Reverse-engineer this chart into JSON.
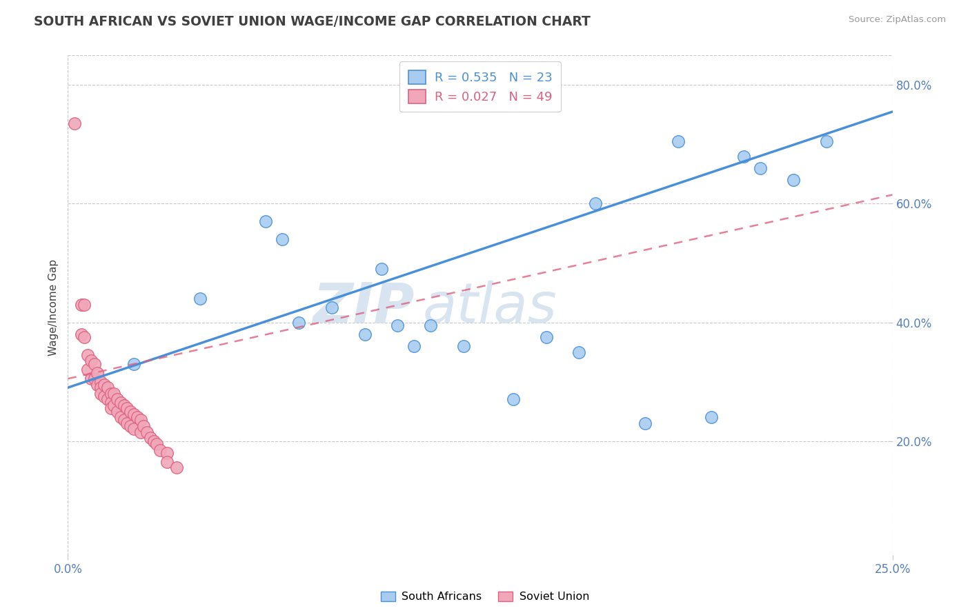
{
  "title": "SOUTH AFRICAN VS SOVIET UNION WAGE/INCOME GAP CORRELATION CHART",
  "source": "Source: ZipAtlas.com",
  "ylabel": "Wage/Income Gap",
  "xlim": [
    0.0,
    0.25
  ],
  "ylim": [
    0.0,
    0.85
  ],
  "yticks": [
    0.2,
    0.4,
    0.6,
    0.8
  ],
  "yticklabels": [
    "20.0%",
    "40.0%",
    "60.0%",
    "80.0%"
  ],
  "xticks": [
    0.0,
    0.25
  ],
  "xticklabels": [
    "0.0%",
    "25.0%"
  ],
  "south_african_R": 0.535,
  "south_african_N": 23,
  "soviet_union_R": 0.027,
  "soviet_union_N": 49,
  "sa_color": "#A8CCF0",
  "su_color": "#F0A8B8",
  "sa_line_color": "#4A90D9",
  "su_line_color": "#E06080",
  "watermark_top": "ZIP",
  "watermark_bottom": "atlas",
  "watermark_color": "#D8E4F0",
  "background_color": "#FFFFFF",
  "grid_color": "#C8C8C8",
  "title_color": "#404040",
  "axis_label_color": "#5580BB",
  "south_africans_x": [
    0.02,
    0.04,
    0.06,
    0.065,
    0.07,
    0.08,
    0.09,
    0.095,
    0.1,
    0.105,
    0.11,
    0.12,
    0.135,
    0.145,
    0.155,
    0.16,
    0.175,
    0.185,
    0.195,
    0.205,
    0.21,
    0.22,
    0.23
  ],
  "south_africans_y": [
    0.33,
    0.44,
    0.57,
    0.54,
    0.4,
    0.425,
    0.38,
    0.49,
    0.395,
    0.36,
    0.395,
    0.36,
    0.27,
    0.375,
    0.35,
    0.6,
    0.23,
    0.705,
    0.24,
    0.68,
    0.66,
    0.64,
    0.705
  ],
  "soviet_union_x": [
    0.004,
    0.004,
    0.005,
    0.005,
    0.006,
    0.006,
    0.007,
    0.007,
    0.008,
    0.008,
    0.009,
    0.009,
    0.01,
    0.01,
    0.01,
    0.011,
    0.011,
    0.012,
    0.012,
    0.013,
    0.013,
    0.013,
    0.014,
    0.014,
    0.015,
    0.015,
    0.016,
    0.016,
    0.017,
    0.017,
    0.018,
    0.018,
    0.019,
    0.019,
    0.02,
    0.02,
    0.021,
    0.022,
    0.022,
    0.023,
    0.024,
    0.025,
    0.026,
    0.027,
    0.028,
    0.03,
    0.03,
    0.033,
    0.002
  ],
  "soviet_union_y": [
    0.43,
    0.38,
    0.43,
    0.375,
    0.345,
    0.32,
    0.335,
    0.305,
    0.33,
    0.305,
    0.315,
    0.295,
    0.3,
    0.29,
    0.28,
    0.295,
    0.275,
    0.29,
    0.27,
    0.28,
    0.265,
    0.255,
    0.28,
    0.26,
    0.27,
    0.25,
    0.265,
    0.24,
    0.26,
    0.235,
    0.255,
    0.23,
    0.25,
    0.225,
    0.245,
    0.22,
    0.24,
    0.235,
    0.215,
    0.225,
    0.215,
    0.205,
    0.2,
    0.195,
    0.185,
    0.18,
    0.165,
    0.155,
    0.735
  ],
  "sa_line_x": [
    0.0,
    0.25
  ],
  "sa_line_y": [
    0.29,
    0.755
  ],
  "su_line_x": [
    0.0,
    0.25
  ],
  "su_line_y": [
    0.305,
    0.615
  ]
}
